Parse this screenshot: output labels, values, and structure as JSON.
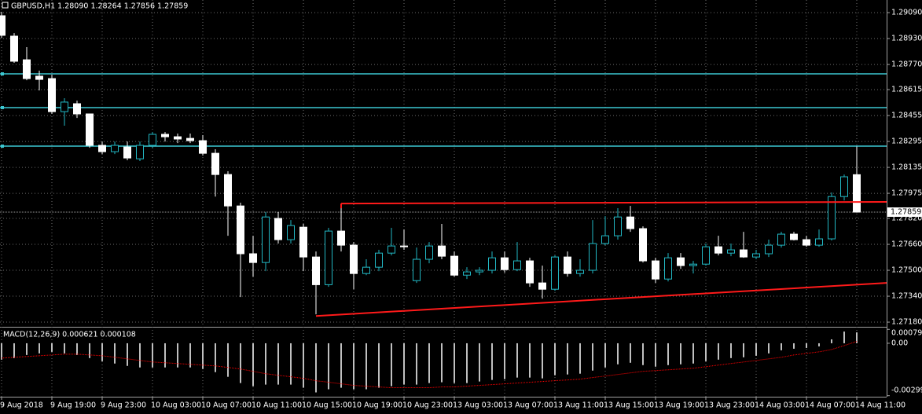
{
  "chart_data": {
    "type": "candlestick",
    "title": "GBPUSD,H1  1.28090 1.28264 1.27856 1.27859",
    "categories": [
      "9 Aug 2018",
      null,
      null,
      null,
      "9 Aug 19:00",
      null,
      null,
      null,
      "9 Aug 23:00",
      null,
      null,
      null,
      "10 Aug 03:00",
      null,
      null,
      null,
      "10 Aug 07:00",
      null,
      null,
      null,
      "10 Aug 11:00",
      null,
      null,
      null,
      "10 Aug 15:00",
      null,
      null,
      null,
      "10 Aug 19:00",
      null,
      null,
      null,
      "10 Aug 23:00",
      null,
      null,
      null,
      "13 Aug 03:00",
      null,
      null,
      null,
      "13 Aug 07:00",
      null,
      null,
      null,
      "13 Aug 11:00",
      null,
      null,
      null,
      "13 Aug 15:00",
      null,
      null,
      null,
      "13 Aug 19:00",
      null,
      null,
      null,
      "13 Aug 23:00",
      null,
      null,
      null,
      "14 Aug 03:00",
      null,
      null,
      null,
      "14 Aug 07:00",
      null,
      null,
      null,
      "14 Aug 11:00"
    ],
    "open": [
      1.29071,
      1.28945,
      1.28799,
      1.28698,
      1.28683,
      1.28479,
      1.28528,
      1.28465,
      1.28271,
      1.28232,
      1.28261,
      1.28188,
      1.28271,
      1.28339,
      1.28324,
      1.28314,
      1.283,
      1.28222,
      1.28091,
      1.27897,
      1.27602,
      1.27548,
      1.2782,
      1.27689,
      1.27766,
      1.27582,
      1.27411,
      1.27742,
      1.27655,
      1.2748,
      1.27519,
      1.27606,
      1.2765,
      1.27436,
      1.27568,
      1.2765,
      1.27587,
      1.2747,
      1.2749,
      1.275,
      1.27577,
      1.27504,
      1.27558,
      1.27422,
      1.27383,
      1.27582,
      1.2748,
      1.275,
      1.27665,
      1.27713,
      1.27829,
      1.27757,
      1.27558,
      1.27446,
      1.27577,
      1.27529,
      1.27538,
      1.27645,
      1.27606,
      1.27626,
      1.27582,
      1.27602,
      1.27655,
      1.27723,
      1.27689,
      1.27655,
      1.27694,
      1.27955,
      1.2809
    ],
    "high": [
      1.29095,
      1.28964,
      1.28877,
      1.28732,
      1.28707,
      1.28562,
      1.28547,
      1.28465,
      1.28295,
      1.28295,
      1.28295,
      1.28295,
      1.28353,
      1.28353,
      1.28344,
      1.28344,
      1.28334,
      1.28247,
      1.28111,
      1.27917,
      1.27713,
      1.27859,
      1.27859,
      1.2781,
      1.27786,
      1.27616,
      1.27762,
      1.27907,
      1.27674,
      1.27568,
      1.27626,
      1.27762,
      1.27752,
      1.2764,
      1.27674,
      1.27786,
      1.27616,
      1.27519,
      1.27519,
      1.27616,
      1.27616,
      1.27674,
      1.27577,
      1.27529,
      1.27592,
      1.27616,
      1.27568,
      1.2781,
      1.27834,
      1.27883,
      1.27897,
      1.27771,
      1.27577,
      1.27606,
      1.27606,
      1.27558,
      1.27665,
      1.27713,
      1.27665,
      1.27737,
      1.27626,
      1.27689,
      1.27737,
      1.27737,
      1.27713,
      1.27752,
      1.2798,
      1.28091,
      1.28264
    ],
    "low": [
      1.28935,
      1.2878,
      1.28673,
      1.2861,
      1.28465,
      1.28392,
      1.2844,
      1.28256,
      1.28217,
      1.28217,
      1.28179,
      1.28174,
      1.28256,
      1.28295,
      1.28285,
      1.28285,
      1.28208,
      1.27955,
      1.27713,
      1.27335,
      1.27461,
      1.27495,
      1.27665,
      1.27665,
      1.27495,
      1.27228,
      1.27398,
      1.27616,
      1.27383,
      1.2747,
      1.27495,
      1.27592,
      1.27626,
      1.27422,
      1.27543,
      1.27568,
      1.27461,
      1.27446,
      1.2747,
      1.2748,
      1.27485,
      1.27495,
      1.27398,
      1.27325,
      1.27373,
      1.27461,
      1.27461,
      1.2748,
      1.27655,
      1.27689,
      1.27737,
      1.27548,
      1.27422,
      1.27431,
      1.27509,
      1.2748,
      1.27529,
      1.27592,
      1.27587,
      1.27577,
      1.27568,
      1.27582,
      1.2764,
      1.27684,
      1.27645,
      1.27645,
      1.27684,
      1.27931,
      1.27856
    ],
    "close": [
      1.2895,
      1.2879,
      1.28683,
      1.28678,
      1.28479,
      1.28538,
      1.28465,
      1.28271,
      1.28232,
      1.28271,
      1.28193,
      1.28271,
      1.28339,
      1.28324,
      1.2831,
      1.283,
      1.28222,
      1.28091,
      1.27897,
      1.27602,
      1.27548,
      1.27829,
      1.27689,
      1.27776,
      1.27582,
      1.27411,
      1.27742,
      1.27655,
      1.2748,
      1.27519,
      1.27606,
      1.2765,
      1.27645,
      1.27568,
      1.2765,
      1.27587,
      1.2747,
      1.2749,
      1.275,
      1.27577,
      1.27504,
      1.27558,
      1.27422,
      1.27383,
      1.27582,
      1.2748,
      1.275,
      1.27665,
      1.27713,
      1.27829,
      1.27757,
      1.27558,
      1.27446,
      1.27577,
      1.27529,
      1.27538,
      1.27645,
      1.27606,
      1.27626,
      1.27582,
      1.27602,
      1.27655,
      1.27723,
      1.27689,
      1.27655,
      1.27694,
      1.27955,
      1.28077,
      1.27859
    ],
    "up_color": "#000000",
    "up_outline": "#22b8c4",
    "down_color": "#ffffff",
    "down_outline": "#ffffff",
    "ylim": [
      1.27156,
      1.29168
    ],
    "yticks": [
      {
        "value": 1.2909,
        "label": "1.29090"
      },
      {
        "value": 1.2893,
        "label": "1.28930"
      },
      {
        "value": 1.2877,
        "label": "1.28770"
      },
      1.28615,
      1.28455,
      1.28295,
      1.28135,
      1.27975,
      {
        "value": 1.2782,
        "label": "1.27820"
      },
      {
        "value": 1.2766,
        "label": "1.27660"
      },
      {
        "value": 1.275,
        "label": "1.27500"
      },
      {
        "value": 1.2734,
        "label": "1.27340"
      },
      {
        "value": 1.2718,
        "label": "1.27180"
      }
    ],
    "grid": true,
    "current_price": 1.27859,
    "hlines": [
      {
        "value": 1.28712,
        "color": "#3cc8d2"
      },
      {
        "value": 1.28504,
        "color": "#3cc8d2"
      },
      {
        "value": 1.28266,
        "color": "#3cc8d2"
      }
    ],
    "trendlines": [
      {
        "start": 27,
        "values": [
          1.27912,
          1.27922
        ],
        "color": "#ff1a1a"
      },
      {
        "start": 25,
        "values": [
          1.27218,
          1.27422
        ],
        "color": "#ff1a1a"
      }
    ],
    "indicator": {
      "type": "macd",
      "title": "MACD(12,26,9) 0.000621 0.000108",
      "histogram": [
        -0.000935,
        -0.000846,
        -0.000668,
        -0.000579,
        -0.00049,
        -0.000579,
        -0.000668,
        -0.000846,
        -0.001024,
        -0.001157,
        -0.001291,
        -0.00138,
        -0.00138,
        -0.00138,
        -0.00138,
        -0.00138,
        -0.001469,
        -0.001647,
        -0.001914,
        -0.00227,
        -0.002448,
        -0.002359,
        -0.002359,
        -0.002359,
        -0.002537,
        -0.002804,
        -0.002626,
        -0.002537,
        -0.002626,
        -0.002626,
        -0.002537,
        -0.002448,
        -0.002359,
        -0.002359,
        -0.00227,
        -0.002225,
        -0.00227,
        -0.00227,
        -0.002181,
        -0.002092,
        -0.002047,
        -0.001958,
        -0.001958,
        -0.002003,
        -0.001825,
        -0.00178,
        -0.001736,
        -0.001558,
        -0.00138,
        -0.001202,
        -0.001113,
        -0.001246,
        -0.001335,
        -0.001246,
        -0.001202,
        -0.001157,
        -0.001024,
        -0.000935,
        -0.000846,
        -0.000801,
        -0.000712,
        -0.000579,
        -0.000401,
        -0.000312,
        -0.000267,
        -0.000178,
        0.000223,
        0.000668,
        0.000621
      ],
      "signal": [
        -0.000846,
        -0.000801,
        -0.000757,
        -0.000712,
        -0.000668,
        -0.000623,
        -0.000623,
        -0.000668,
        -0.000712,
        -0.000801,
        -0.00089,
        -0.000979,
        -0.001068,
        -0.001113,
        -0.001157,
        -0.001202,
        -0.001246,
        -0.001291,
        -0.00138,
        -0.001469,
        -0.001602,
        -0.001736,
        -0.001825,
        -0.001914,
        -0.002003,
        -0.002136,
        -0.002225,
        -0.002314,
        -0.002403,
        -0.002448,
        -0.002492,
        -0.002537,
        -0.002537,
        -0.002537,
        -0.002537,
        -0.002492,
        -0.002492,
        -0.002448,
        -0.002403,
        -0.002359,
        -0.002314,
        -0.00227,
        -0.002225,
        -0.002181,
        -0.002136,
        -0.002092,
        -0.002047,
        -0.001958,
        -0.001869,
        -0.00178,
        -0.001691,
        -0.001602,
        -0.001558,
        -0.001513,
        -0.001469,
        -0.001424,
        -0.001335,
        -0.001246,
        -0.001157,
        -0.001068,
        -0.000979,
        -0.00089,
        -0.000801,
        -0.000668,
        -0.000579,
        -0.00049,
        -0.000356,
        -0.000134,
        0.000108
      ],
      "histogram_color": "#c0c0c0",
      "signal_color": "#ff0000",
      "ylim": [
        -0.00305,
        0.00085
      ],
      "yticks": [
        0.000793,
        {
          "value": 0,
          "label": "0.00"
        },
        -0.002991
      ]
    }
  }
}
